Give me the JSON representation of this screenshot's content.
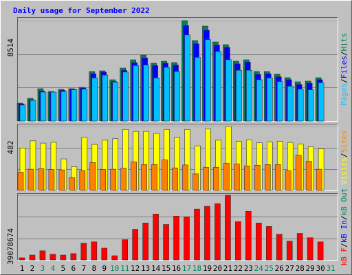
{
  "chart_data": [
    {
      "type": "bar",
      "title": "Daily usage for September 2022",
      "categories": [
        "1",
        "2",
        "3",
        "4",
        "5",
        "6",
        "7",
        "8",
        "9",
        "10",
        "11",
        "12",
        "13",
        "14",
        "15",
        "16",
        "17",
        "18",
        "19",
        "20",
        "21",
        "22",
        "23",
        "24",
        "25",
        "26",
        "27",
        "28",
        "29",
        "30",
        "31"
      ],
      "category_colors": [
        "#000000",
        "#000000",
        "#00805c",
        "#00805c",
        "#000000",
        "#000000",
        "#000000",
        "#000000",
        "#000000",
        "#00805c",
        "#00805c",
        "#000000",
        "#000000",
        "#000000",
        "#000000",
        "#000000",
        "#00805c",
        "#00805c",
        "#000000",
        "#000000",
        "#000000",
        "#000000",
        "#000000",
        "#00805c",
        "#00805c",
        "#000000",
        "#000000",
        "#000000",
        "#000000",
        "#000000",
        "#00805c"
      ],
      "ylim": [
        0,
        8514
      ],
      "yticks": [
        8514
      ],
      "gridlines": [
        2838,
        5676
      ],
      "separator": "/",
      "series": [
        {
          "name": "Hits",
          "color": "#00805c",
          "values": [
            1516,
            1924,
            2741,
            2507,
            2682,
            2741,
            2857,
            4199,
            4257,
            3499,
            4490,
            5190,
            5598,
            4898,
            5073,
            4957,
            8514,
            6823,
            8047,
            6706,
            6473,
            5073,
            5190,
            4199,
            4199,
            3966,
            3674,
            3324,
            3383,
            3674,
            null
          ]
        },
        {
          "name": "Files",
          "color": "#0000ff",
          "values": [
            1450,
            1800,
            2550,
            2450,
            2600,
            2700,
            2800,
            4000,
            4150,
            3350,
            4300,
            4950,
            5350,
            4700,
            4900,
            4750,
            8100,
            6550,
            7700,
            6450,
            6250,
            4850,
            5000,
            3950,
            4000,
            3750,
            3500,
            3100,
            3200,
            3500,
            null
          ]
        },
        {
          "name": "Pages",
          "color": "#00c0ff",
          "values": [
            1350,
            1750,
            2450,
            2450,
            2500,
            2650,
            2700,
            3650,
            3900,
            3300,
            4150,
            4700,
            4750,
            3650,
            4550,
            4200,
            7300,
            5400,
            6900,
            5900,
            5200,
            4300,
            4300,
            3500,
            3650,
            3350,
            2950,
            2700,
            2650,
            3250,
            null
          ]
        }
      ]
    },
    {
      "type": "bar",
      "ylim": [
        0,
        482
      ],
      "yticks": [
        482
      ],
      "gridlines": [
        161,
        321
      ],
      "separator": "/",
      "series": [
        {
          "name": "Visits",
          "color": "#ffff00",
          "values": [
            320,
            374,
            357,
            363,
            238,
            179,
            400,
            347,
            379,
            390,
            460,
            445,
            445,
            430,
            460,
            400,
            460,
            336,
            465,
            379,
            482,
            370,
            380,
            360,
            365,
            370,
            362,
            350,
            330,
            315,
            null
          ]
        },
        {
          "name": "Sites",
          "color": "#ff8000",
          "values": [
            137,
            160,
            165,
            158,
            155,
            96,
            150,
            210,
            158,
            160,
            168,
            215,
            195,
            195,
            230,
            170,
            192,
            125,
            175,
            175,
            205,
            200,
            185,
            190,
            195,
            195,
            150,
            265,
            220,
            160,
            null
          ]
        }
      ]
    },
    {
      "type": "bar",
      "ylim": [
        0,
        39078674
      ],
      "yticks": [
        39078674
      ],
      "gridlines": [
        13026225,
        26052449
      ],
      "separator": "/",
      "series": [
        {
          "name": "kB F",
          "color": "#ff0000",
          "values": [
            1260000,
            2900000,
            5500000,
            3400000,
            2900000,
            3800000,
            10100000,
            10900000,
            7100000,
            2500000,
            12200000,
            18500000,
            22300000,
            27700000,
            21400000,
            26500000,
            26100000,
            30700000,
            32400000,
            34000000,
            39078674,
            23100000,
            29400000,
            22300000,
            20200000,
            15500000,
            11300000,
            16000000,
            13400000,
            10900000,
            null
          ]
        },
        {
          "name": "kB In",
          "color": "#0000ff"
        },
        {
          "name": "kB Out",
          "color": "#00805c"
        }
      ]
    }
  ]
}
